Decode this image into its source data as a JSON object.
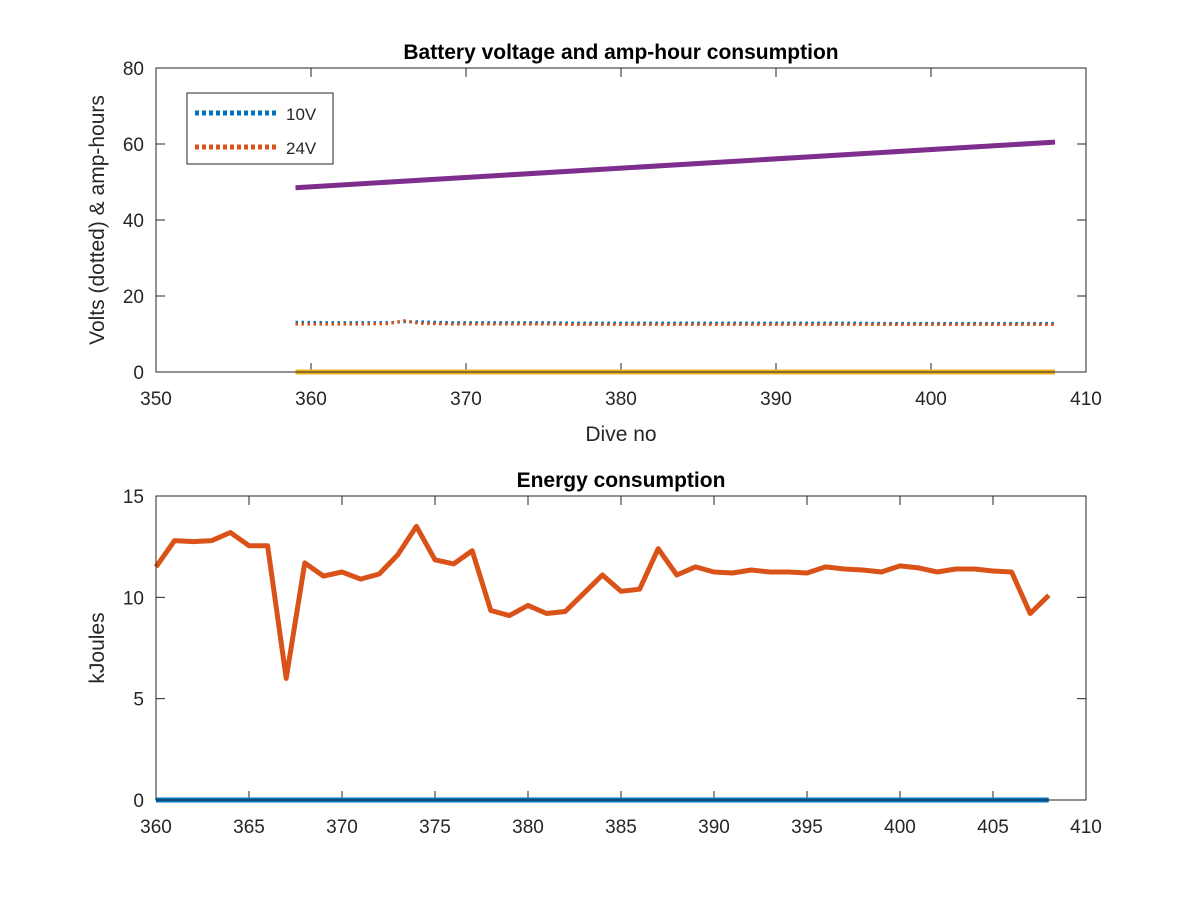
{
  "chart_data": [
    {
      "type": "line",
      "title": "Battery voltage and amp-hour consumption",
      "xlabel": "Dive no",
      "ylabel": "Volts (dotted) & amp-hours",
      "xlim": [
        350,
        410
      ],
      "ylim": [
        0,
        80
      ],
      "xticks": [
        350,
        360,
        370,
        380,
        390,
        400,
        410
      ],
      "yticks": [
        0,
        20,
        40,
        60,
        80
      ],
      "grid": false,
      "legend_position": "top-left",
      "series": [
        {
          "name": "10V",
          "style": "dotted",
          "color": "#0072BD",
          "x": [
            359,
            361,
            363,
            365,
            366,
            367,
            369,
            371,
            373,
            375,
            377,
            379,
            381,
            383,
            385,
            387,
            389,
            391,
            393,
            395,
            397,
            399,
            401,
            403,
            405,
            408
          ],
          "y": [
            13.1,
            13.0,
            13.0,
            13.0,
            13.2,
            13.2,
            13.0,
            13.0,
            13.0,
            13.0,
            12.9,
            12.9,
            12.9,
            12.9,
            12.9,
            12.9,
            12.9,
            12.9,
            12.9,
            12.9,
            12.8,
            12.8,
            12.8,
            12.8,
            12.8,
            12.8
          ]
        },
        {
          "name": "24V",
          "style": "dotted",
          "color": "#D95319",
          "x": [
            359,
            361,
            363,
            365,
            366,
            367,
            369,
            371,
            373,
            375,
            377,
            379,
            381,
            383,
            385,
            387,
            389,
            391,
            393,
            395,
            397,
            399,
            401,
            403,
            405,
            408
          ],
          "y": [
            12.6,
            12.6,
            12.6,
            12.7,
            13.5,
            12.8,
            12.6,
            12.6,
            12.6,
            12.6,
            12.5,
            12.5,
            12.5,
            12.5,
            12.5,
            12.5,
            12.5,
            12.5,
            12.5,
            12.5,
            12.5,
            12.5,
            12.5,
            12.5,
            12.5,
            12.5
          ]
        },
        {
          "style": "solid",
          "color": "#EDB120",
          "x": [
            359,
            408
          ],
          "y": [
            0,
            0
          ]
        },
        {
          "style": "solid",
          "color": "#7E2F8E",
          "x": [
            359,
            408
          ],
          "y": [
            48.5,
            60.5
          ]
        }
      ]
    },
    {
      "type": "line",
      "title": "Energy consumption",
      "xlabel": "",
      "ylabel": "kJoules",
      "xlim": [
        360,
        410
      ],
      "ylim": [
        0,
        15
      ],
      "xticks": [
        360,
        365,
        370,
        375,
        380,
        385,
        390,
        395,
        400,
        405,
        410
      ],
      "yticks": [
        0,
        5,
        10,
        15
      ],
      "grid": false,
      "series": [
        {
          "style": "solid",
          "color": "#0072BD",
          "x": [
            360,
            408
          ],
          "y": [
            0,
            0
          ]
        },
        {
          "style": "solid",
          "color": "#D95319",
          "x": [
            360,
            361,
            362,
            363,
            364,
            365,
            366,
            367,
            368,
            369,
            370,
            371,
            372,
            373,
            374,
            375,
            376,
            377,
            378,
            379,
            380,
            381,
            382,
            383,
            384,
            385,
            386,
            387,
            388,
            389,
            390,
            391,
            392,
            393,
            394,
            395,
            396,
            397,
            398,
            399,
            400,
            401,
            402,
            403,
            404,
            405,
            406,
            407,
            408
          ],
          "y": [
            11.5,
            12.8,
            12.75,
            12.8,
            13.2,
            12.55,
            12.55,
            6.0,
            11.7,
            11.05,
            11.25,
            10.9,
            11.15,
            12.1,
            13.5,
            11.85,
            11.65,
            12.3,
            9.35,
            9.1,
            9.6,
            9.2,
            9.3,
            10.2,
            11.1,
            10.3,
            10.4,
            12.4,
            11.1,
            11.5,
            11.25,
            11.2,
            11.35,
            11.25,
            11.25,
            11.2,
            11.5,
            11.4,
            11.35,
            11.25,
            11.55,
            11.45,
            11.25,
            11.4,
            11.4,
            11.3,
            11.25,
            9.2,
            10.1
          ]
        }
      ]
    }
  ]
}
